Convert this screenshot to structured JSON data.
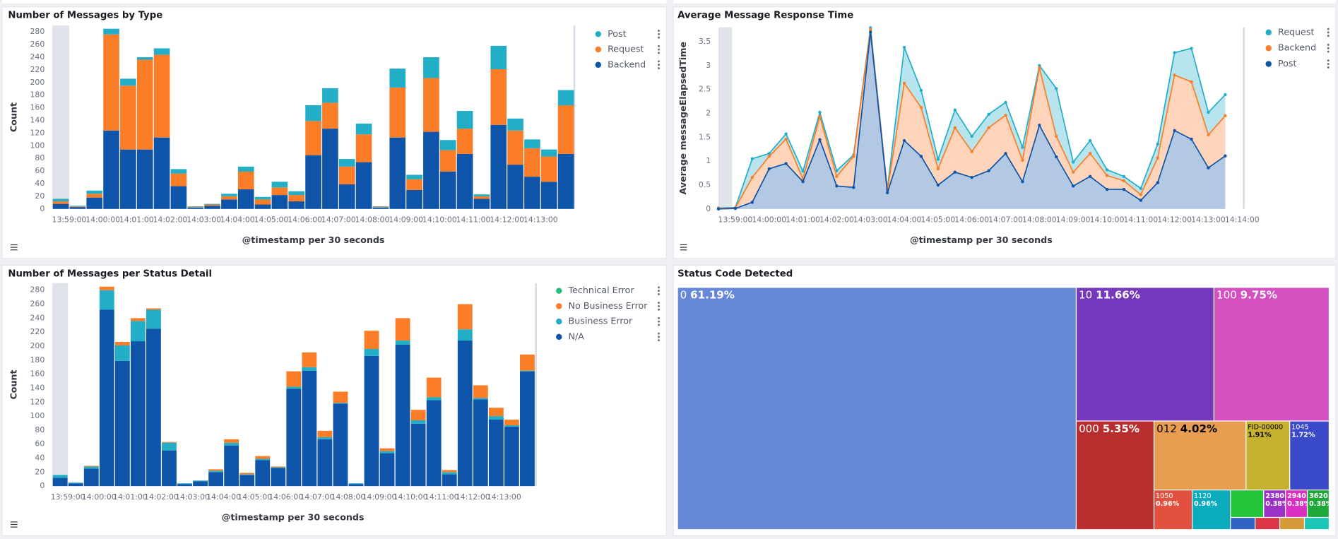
{
  "chart_data": [
    {
      "type": "bar",
      "stacked": true,
      "title": "Number of Messages by Type",
      "y_label": "Count",
      "x_label": "@timestamp per 30 seconds",
      "categories": [
        null,
        "13:59:00",
        null,
        "14:00:00",
        null,
        "14:01:00",
        null,
        "14:02:00",
        null,
        "14:03:00",
        null,
        "14:04:00",
        null,
        "14:05:00",
        null,
        "14:06:00",
        null,
        "14:07:00",
        null,
        "14:08:00",
        null,
        "14:09:00",
        null,
        "14:10:00",
        null,
        "14:11:00",
        null,
        "14:12:00",
        null,
        "14:13:00",
        null
      ],
      "series": [
        {
          "name": "Post",
          "color": "#22aec6",
          "values": [
            4,
            1,
            5,
            9,
            11,
            4,
            10,
            7,
            1,
            1,
            4,
            8,
            4,
            9,
            6,
            25,
            23,
            12,
            17,
            1,
            30,
            7,
            33,
            16,
            28,
            3,
            37,
            19,
            14,
            11,
            24
          ]
        },
        {
          "name": "Request",
          "color": "#fb7d27",
          "values": [
            4,
            1,
            6,
            152,
            101,
            142,
            131,
            20,
            1,
            2,
            5,
            28,
            8,
            12,
            10,
            54,
            41,
            28,
            44,
            1,
            79,
            17,
            85,
            34,
            40,
            4,
            88,
            54,
            45,
            40,
            77
          ]
        },
        {
          "name": "Backend",
          "color": "#0e54a8",
          "values": [
            8,
            3,
            18,
            124,
            94,
            94,
            113,
            36,
            2,
            5,
            15,
            31,
            7,
            22,
            12,
            85,
            127,
            39,
            74,
            2,
            113,
            30,
            122,
            59,
            87,
            16,
            133,
            70,
            51,
            43,
            87
          ]
        }
      ],
      "ylim": [
        0,
        290
      ],
      "yticks": [
        0,
        20,
        40,
        60,
        80,
        100,
        120,
        140,
        160,
        180,
        200,
        220,
        240,
        260,
        280
      ],
      "grid": false,
      "legend": "right"
    },
    {
      "type": "area",
      "title": "Average Message Response Time",
      "y_label": "Average messageElapsedTime",
      "x_label": "@timestamp per 30 seconds",
      "categories": [
        null,
        "13:59:00",
        null,
        "14:00:00",
        null,
        "14:01:00",
        null,
        "14:02:00",
        null,
        "14:03:00",
        null,
        "14:04:00",
        null,
        "14:05:00",
        null,
        "14:06:00",
        null,
        "14:07:00",
        null,
        "14:08:00",
        null,
        "14:09:00",
        null,
        "14:10:00",
        null,
        "14:11:00",
        null,
        "14:12:00",
        null,
        "14:13:00",
        null,
        "14:14:00"
      ],
      "series": [
        {
          "name": "Request",
          "color": "#22aec6",
          "values": [
            0.02,
            0.03,
            1.05,
            1.16,
            1.57,
            0.79,
            2.02,
            0.8,
            1.13,
            3.79,
            0.41,
            3.38,
            2.48,
            1.04,
            2.07,
            1.52,
            1.98,
            2.23,
            1.29,
            3.0,
            2.52,
            0.98,
            1.43,
            0.82,
            0.68,
            0.43,
            1.36,
            3.27,
            3.36,
            2.02,
            2.39,
            null
          ]
        },
        {
          "name": "Backend",
          "color": "#fb7d27",
          "values": [
            0.01,
            0.02,
            0.66,
            1.1,
            1.46,
            0.63,
            1.93,
            0.68,
            1.1,
            3.75,
            0.39,
            2.63,
            2.12,
            0.84,
            1.7,
            1.2,
            1.7,
            1.96,
            1.02,
            2.95,
            1.52,
            0.77,
            1.16,
            0.7,
            0.59,
            0.3,
            1.07,
            2.8,
            2.66,
            1.55,
            1.95,
            null
          ]
        },
        {
          "name": "Post",
          "color": "#0e54a8",
          "values": [
            0,
            0.01,
            0.14,
            0.84,
            0.95,
            0.57,
            1.45,
            0.48,
            0.45,
            3.7,
            0.34,
            1.43,
            1.1,
            0.5,
            0.77,
            0.66,
            0.8,
            1.16,
            0.57,
            1.75,
            1.09,
            0.48,
            0.68,
            0.41,
            0.41,
            0.18,
            0.55,
            1.64,
            1.46,
            0.86,
            1.11,
            null
          ]
        }
      ],
      "ylim": [
        0,
        3.8
      ],
      "yticks": [
        0,
        0.5,
        1,
        1.5,
        2,
        2.5,
        3,
        3.5
      ],
      "grid": false,
      "legend": "right"
    },
    {
      "type": "bar",
      "stacked": true,
      "title": "Number of Messages per Status Detail",
      "y_label": "Count",
      "x_label": "@timestamp per 30 seconds",
      "categories": [
        null,
        "13:59:00",
        null,
        "14:00:00",
        null,
        "14:01:00",
        null,
        "14:02:00",
        null,
        "14:03:00",
        null,
        "14:04:00",
        null,
        "14:05:00",
        null,
        "14:06:00",
        null,
        "14:07:00",
        null,
        "14:08:00",
        null,
        "14:09:00",
        null,
        "14:10:00",
        null,
        "14:11:00",
        null,
        "14:12:00",
        null,
        "14:13:00",
        null
      ],
      "series": [
        {
          "name": "Technical Error",
          "color": "#20c07c",
          "values": [
            0,
            0,
            0,
            0,
            0,
            0,
            0,
            0,
            0,
            0,
            0,
            0,
            0,
            0,
            0,
            0,
            0,
            0,
            0,
            0,
            0,
            0,
            0,
            0,
            0,
            0,
            0,
            0,
            0,
            0,
            0
          ]
        },
        {
          "name": "No Business Error",
          "color": "#fb7d27",
          "values": [
            0,
            0,
            1,
            5,
            5,
            4,
            2,
            1,
            0,
            0,
            2,
            5,
            2,
            4,
            1,
            22,
            21,
            9,
            16,
            0,
            26,
            4,
            32,
            15,
            28,
            3,
            36,
            18,
            12,
            8,
            23
          ]
        },
        {
          "name": "Business Error",
          "color": "#22aec6",
          "values": [
            4,
            1,
            3,
            28,
            22,
            29,
            27,
            11,
            1,
            1,
            2,
            4,
            1,
            2,
            1,
            3,
            5,
            3,
            1,
            1,
            10,
            3,
            6,
            5,
            4,
            3,
            16,
            2,
            5,
            2,
            1
          ]
        },
        {
          "name": "N/A",
          "color": "#0e54a8",
          "values": [
            12,
            4,
            25,
            252,
            179,
            207,
            225,
            51,
            3,
            7,
            20,
            58,
            16,
            37,
            26,
            139,
            165,
            67,
            118,
            3,
            186,
            47,
            202,
            89,
            123,
            17,
            208,
            124,
            95,
            85,
            164
          ]
        }
      ],
      "ylim": [
        0,
        290
      ],
      "yticks": [
        0,
        20,
        40,
        60,
        80,
        100,
        120,
        140,
        160,
        180,
        200,
        220,
        240,
        260,
        280
      ],
      "grid": false,
      "legend": "right"
    },
    {
      "type": "treemap",
      "title": "Status Code Detected",
      "labels": [
        "0",
        "10",
        "100",
        "000",
        "012",
        "FID-00000",
        "1045",
        "1050",
        "1120",
        null,
        "2380",
        "2940",
        "3620",
        null,
        null,
        null,
        null
      ],
      "values": [
        61.19,
        11.66,
        9.75,
        5.35,
        4.02,
        1.91,
        1.72,
        0.96,
        0.96,
        0.58,
        0.38,
        0.38,
        0.38,
        0.19,
        0.19,
        0.19,
        0.19
      ],
      "value_labels": [
        "61.19%",
        "11.66%",
        "9.75%",
        "5.35%",
        "4.02%",
        "1.91%",
        "1.72%",
        "0.96%",
        "0.96%",
        null,
        "0.38%",
        "0.38%",
        "0.38%",
        null,
        null,
        null,
        null
      ],
      "colors": [
        "#6788d9",
        "#7338bc",
        "#d44fc0",
        "#b82e2e",
        "#e89e50",
        "#c7b22f",
        "#3b4ac9",
        "#e2513f",
        "#0aabbd",
        "#24c33a",
        "#9a32c6",
        "#d930c2",
        "#1fa83a",
        "#2f63c6",
        "#dc3545",
        "#d49a3a",
        "#1cc6b6"
      ]
    }
  ]
}
